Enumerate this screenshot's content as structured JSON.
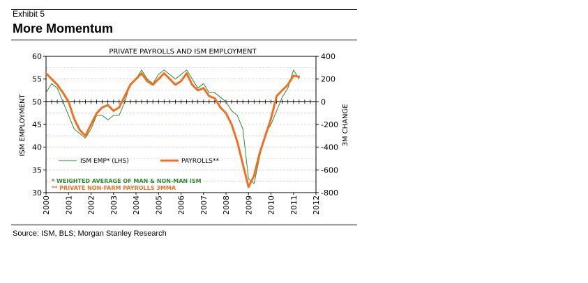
{
  "header": {
    "exhibit": "Exhibit 5",
    "title": "More Momentum"
  },
  "source": "Source: ISM, BLS; Morgan Stanley Research",
  "colors": {
    "ism": "#2e8b2e",
    "payrolls": "#f07020",
    "note_ism": "#2e8b2e",
    "note_payrolls": "#f07020"
  },
  "chart_data": {
    "type": "line",
    "title": "PRIVATE PAYROLLS AND ISM EMPLOYMENT",
    "ylabel_left": "ISM EMPLOYMENT",
    "ylabel_right": "3M CHANGE",
    "ylim_left": [
      30,
      60
    ],
    "ylim_right": [
      -800,
      400
    ],
    "yticks_left": [
      30,
      35,
      40,
      45,
      50,
      55,
      60
    ],
    "yticks_right": [
      -800,
      -600,
      -400,
      -200,
      0,
      200,
      400
    ],
    "ytick_labels_right": [
      "-800",
      "-600",
      "-400",
      "-200",
      "0",
      "200",
      "400"
    ],
    "xlim": [
      2000,
      2012
    ],
    "xticks": [
      "2000",
      "2001",
      "2002",
      "2003",
      "2004",
      "2005",
      "2006",
      "2007",
      "2008",
      "2009",
      "2010",
      "2011",
      "2012"
    ],
    "grid": true,
    "legend": "bottom-left",
    "series": [
      {
        "name": "ISM EMP* (LHS)",
        "axis": "left",
        "x": [
          2000.0,
          2000.25,
          2000.5,
          2000.75,
          2001.0,
          2001.25,
          2001.5,
          2001.75,
          2002.0,
          2002.25,
          2002.5,
          2002.75,
          2003.0,
          2003.25,
          2003.5,
          2003.75,
          2004.0,
          2004.25,
          2004.5,
          2004.75,
          2005.0,
          2005.25,
          2005.5,
          2005.75,
          2006.0,
          2006.25,
          2006.5,
          2006.75,
          2007.0,
          2007.25,
          2007.5,
          2007.75,
          2008.0,
          2008.25,
          2008.5,
          2008.75,
          2009.0,
          2009.25,
          2009.5,
          2009.75,
          2010.0,
          2010.25,
          2010.5,
          2010.75,
          2011.0,
          2011.25
        ],
        "values": [
          52,
          54,
          53,
          50,
          47,
          44,
          43,
          42,
          44,
          47,
          47,
          46,
          47,
          47,
          50,
          54,
          55,
          57,
          55,
          54,
          56,
          57,
          56,
          55,
          56,
          57,
          55,
          53,
          54,
          52,
          52,
          51,
          50,
          48,
          47,
          44,
          33,
          32,
          38,
          43,
          45,
          48,
          51,
          53,
          57,
          55
        ]
      },
      {
        "name": "PAYROLLS**",
        "axis": "right",
        "x": [
          2000.0,
          2000.25,
          2000.5,
          2000.75,
          2001.0,
          2001.25,
          2001.5,
          2001.75,
          2002.0,
          2002.25,
          2002.5,
          2002.75,
          2003.0,
          2003.25,
          2003.5,
          2003.75,
          2004.0,
          2004.25,
          2004.5,
          2004.75,
          2005.0,
          2005.25,
          2005.5,
          2005.75,
          2006.0,
          2006.25,
          2006.5,
          2006.75,
          2007.0,
          2007.25,
          2007.5,
          2007.75,
          2008.0,
          2008.25,
          2008.5,
          2008.75,
          2009.0,
          2009.25,
          2009.5,
          2009.75,
          2010.0,
          2010.25,
          2010.5,
          2010.75,
          2011.0,
          2011.25
        ],
        "values": [
          250,
          200,
          150,
          80,
          0,
          -150,
          -250,
          -300,
          -200,
          -100,
          -50,
          -30,
          -80,
          -50,
          50,
          150,
          200,
          250,
          180,
          150,
          200,
          250,
          200,
          150,
          180,
          250,
          150,
          100,
          120,
          50,
          30,
          -50,
          -100,
          -200,
          -350,
          -550,
          -750,
          -650,
          -450,
          -300,
          -150,
          50,
          100,
          150,
          230,
          220
        ]
      }
    ],
    "notes": [
      "* WEIGHTED AVERAGE OF MAN & NON-MAN ISM",
      "** PRIVATE NON-FARM PAYROLLS 3MMA"
    ]
  }
}
